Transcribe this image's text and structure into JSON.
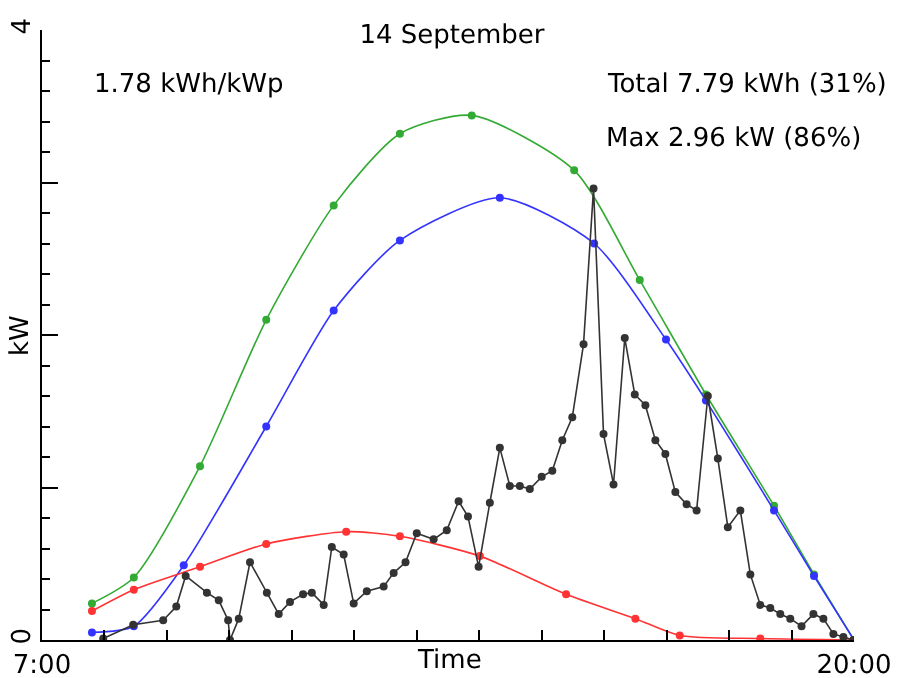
{
  "chart_data": {
    "type": "line",
    "title": "14 September",
    "xlabel": "Time",
    "ylabel": "kW",
    "annotations": [
      "1.78 kWh/kWp",
      "Total 7.79 kWh (31%)",
      "Max 2.96 kW (86%)"
    ],
    "xlim": [
      7,
      20
    ],
    "xticks": [
      {
        "value": 7,
        "label": "7:00"
      },
      {
        "value": 8,
        "label": null
      },
      {
        "value": 9,
        "label": null
      },
      {
        "value": 10,
        "label": null
      },
      {
        "value": 11,
        "label": null
      },
      {
        "value": 12,
        "label": null
      },
      {
        "value": 13,
        "label": null
      },
      {
        "value": 14,
        "label": null
      },
      {
        "value": 15,
        "label": null
      },
      {
        "value": 16,
        "label": null
      },
      {
        "value": 17,
        "label": null
      },
      {
        "value": 18,
        "label": null
      },
      {
        "value": 19,
        "label": null
      },
      {
        "value": 20,
        "label": "20:00"
      }
    ],
    "ylim": [
      0,
      4
    ],
    "yticks": [
      0,
      {
        "value": 1,
        "label": null
      },
      {
        "value": 2,
        "label": null
      },
      {
        "value": 3,
        "label": null
      },
      4
    ],
    "marker": "circle",
    "line_style": "solid",
    "series": [
      {
        "color": "#33aa33",
        "x": [
          7.8,
          8.47,
          9.53,
          10.59,
          11.67,
          12.73,
          13.88,
          15.52,
          16.57,
          17.63,
          18.72,
          19.36,
          20
        ],
        "values": [
          0.24,
          0.41,
          1.14,
          2.1,
          2.85,
          3.32,
          3.44,
          3.08,
          2.36,
          1.61,
          0.88,
          0.43,
          0
        ]
      },
      {
        "color": "#3333ff",
        "x": [
          7.8,
          8.47,
          9.27,
          10.59,
          11.67,
          12.73,
          14.33,
          15.84,
          16.99,
          17.63,
          18.72,
          19.36,
          20
        ],
        "values": [
          0.05,
          0.09,
          0.49,
          1.4,
          2.16,
          2.62,
          2.9,
          2.6,
          1.97,
          1.57,
          0.85,
          0.42,
          0
        ]
      },
      {
        "color": "#ff3333",
        "x": [
          7.8,
          8.47,
          9.53,
          10.59,
          11.87,
          12.73,
          14.01,
          15.39,
          16.5,
          17.21,
          18.5,
          20
        ],
        "values": [
          0.19,
          0.33,
          0.48,
          0.63,
          0.71,
          0.68,
          0.55,
          0.3,
          0.14,
          0.03,
          0.01,
          0
        ]
      },
      {
        "color": "#333333",
        "x": [
          7.98,
          8.46,
          8.94,
          9.15,
          9.3,
          9.64,
          9.83,
          9.98,
          10.01,
          10.15,
          10.33,
          10.6,
          10.79,
          10.97,
          11.18,
          11.32,
          11.51,
          11.64,
          11.83,
          11.99,
          12.2,
          12.47,
          12.63,
          12.82,
          13.0,
          13.27,
          13.48,
          13.67,
          13.82,
          13.99,
          14.17,
          14.33,
          14.49,
          14.65,
          14.81,
          15.0,
          15.17,
          15.33,
          15.49,
          15.67,
          15.83,
          15.99,
          16.15,
          16.33,
          16.49,
          16.66,
          16.82,
          16.98,
          17.14,
          17.32,
          17.48,
          17.66,
          17.82,
          17.98,
          18.18,
          18.34,
          18.5,
          18.66,
          18.82,
          18.98,
          19.16,
          19.35,
          19.51,
          19.67,
          19.83,
          19.99
        ],
        "values": [
          0.01,
          0.1,
          0.13,
          0.22,
          0.42,
          0.31,
          0.26,
          0.13,
          0,
          0.14,
          0.51,
          0.31,
          0.17,
          0.25,
          0.3,
          0.31,
          0.23,
          0.61,
          0.56,
          0.24,
          0.32,
          0.35,
          0.44,
          0.51,
          0.7,
          0.66,
          0.72,
          0.91,
          0.81,
          0.48,
          0.9,
          1.26,
          1.01,
          1.01,
          0.99,
          1.07,
          1.11,
          1.31,
          1.46,
          1.94,
          2.96,
          1.35,
          1.02,
          1.98,
          1.61,
          1.54,
          1.31,
          1.22,
          0.97,
          0.89,
          0.85,
          1.6,
          1.19,
          0.74,
          0.85,
          0.43,
          0.23,
          0.21,
          0.17,
          0.14,
          0.09,
          0.17,
          0.14,
          0.04,
          0.02,
          0
        ]
      }
    ]
  }
}
